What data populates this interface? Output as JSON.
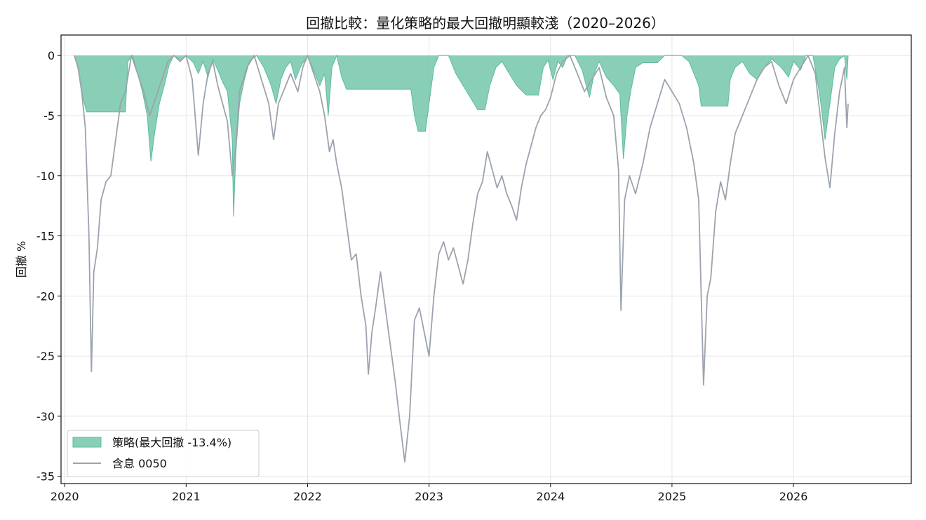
{
  "chart_data": {
    "type": "area",
    "title": "回撤比較：量化策略的最大回撤明顯較淺（2020–2026）",
    "xlabel": "",
    "ylabel": "回撤 %",
    "xlim": [
      2019.97,
      2026.97
    ],
    "ylim": [
      -35.6,
      1.7
    ],
    "x_ticks": [
      2020,
      2021,
      2022,
      2023,
      2024,
      2025,
      2026
    ],
    "x_tick_labels": [
      "2020",
      "2021",
      "2022",
      "2023",
      "2024",
      "2025",
      "2026"
    ],
    "y_ticks": [
      0,
      -5,
      -10,
      -15,
      -20,
      -25,
      -30,
      -35
    ],
    "y_tick_labels": [
      "0",
      "-5",
      "-10",
      "-15",
      "-20",
      "-25",
      "-30",
      "-35"
    ],
    "grid": true,
    "legend_position": "lower-left",
    "series": [
      {
        "name": "策略(最大回撤 -13.4%)",
        "kind": "area",
        "color": "#5bbd9b",
        "points": [
          [
            2020.08,
            0
          ],
          [
            2020.12,
            -1.5
          ],
          [
            2020.15,
            -3.5
          ],
          [
            2020.18,
            -4.7
          ],
          [
            2020.3,
            -4.7
          ],
          [
            2020.4,
            -4.7
          ],
          [
            2020.5,
            -4.7
          ],
          [
            2020.52,
            -0.5
          ],
          [
            2020.56,
            0
          ],
          [
            2020.6,
            -1.5
          ],
          [
            2020.64,
            -3.0
          ],
          [
            2020.68,
            -5.0
          ],
          [
            2020.71,
            -8.8
          ],
          [
            2020.74,
            -6.5
          ],
          [
            2020.78,
            -4.0
          ],
          [
            2020.82,
            -2.5
          ],
          [
            2020.86,
            -0.8
          ],
          [
            2020.9,
            0
          ],
          [
            2020.96,
            -0.4
          ],
          [
            2021.0,
            0
          ],
          [
            2021.06,
            -0.6
          ],
          [
            2021.1,
            -1.5
          ],
          [
            2021.14,
            -0.5
          ],
          [
            2021.18,
            -1.8
          ],
          [
            2021.22,
            -0.3
          ],
          [
            2021.26,
            -1.2
          ],
          [
            2021.3,
            -2.2
          ],
          [
            2021.34,
            -3.0
          ],
          [
            2021.38,
            -7.0
          ],
          [
            2021.39,
            -13.4
          ],
          [
            2021.41,
            -8.0
          ],
          [
            2021.44,
            -4.0
          ],
          [
            2021.48,
            -2.0
          ],
          [
            2021.52,
            -0.5
          ],
          [
            2021.58,
            0
          ],
          [
            2021.64,
            -1.0
          ],
          [
            2021.7,
            -2.5
          ],
          [
            2021.74,
            -4.0
          ],
          [
            2021.78,
            -2.0
          ],
          [
            2021.82,
            -1.0
          ],
          [
            2021.86,
            -0.5
          ],
          [
            2021.9,
            -2.0
          ],
          [
            2021.94,
            -1.0
          ],
          [
            2022.0,
            0
          ],
          [
            2022.06,
            -1.5
          ],
          [
            2022.1,
            -2.5
          ],
          [
            2022.14,
            -1.5
          ],
          [
            2022.17,
            -5.0
          ],
          [
            2022.2,
            -1.0
          ],
          [
            2022.24,
            0
          ],
          [
            2022.28,
            -1.8
          ],
          [
            2022.32,
            -2.8
          ],
          [
            2022.5,
            -2.8
          ],
          [
            2022.7,
            -2.8
          ],
          [
            2022.85,
            -2.8
          ],
          [
            2022.88,
            -5.0
          ],
          [
            2022.91,
            -6.3
          ],
          [
            2022.97,
            -6.3
          ],
          [
            2023.0,
            -4.0
          ],
          [
            2023.04,
            -1.0
          ],
          [
            2023.08,
            0
          ],
          [
            2023.16,
            0
          ],
          [
            2023.22,
            -1.5
          ],
          [
            2023.28,
            -2.5
          ],
          [
            2023.34,
            -3.5
          ],
          [
            2023.4,
            -4.5
          ],
          [
            2023.46,
            -4.5
          ],
          [
            2023.5,
            -2.5
          ],
          [
            2023.55,
            -1.0
          ],
          [
            2023.6,
            -0.5
          ],
          [
            2023.66,
            -1.5
          ],
          [
            2023.72,
            -2.5
          ],
          [
            2023.8,
            -3.3
          ],
          [
            2023.9,
            -3.3
          ],
          [
            2023.94,
            -1.0
          ],
          [
            2023.98,
            -0.4
          ],
          [
            2024.02,
            -2.0
          ],
          [
            2024.06,
            -0.5
          ],
          [
            2024.1,
            -1.0
          ],
          [
            2024.14,
            0
          ],
          [
            2024.2,
            0
          ],
          [
            2024.26,
            -1.2
          ],
          [
            2024.32,
            -3.5
          ],
          [
            2024.36,
            -1.5
          ],
          [
            2024.4,
            -0.5
          ],
          [
            2024.46,
            -1.8
          ],
          [
            2024.52,
            -2.5
          ],
          [
            2024.57,
            -3.2
          ],
          [
            2024.6,
            -8.6
          ],
          [
            2024.63,
            -5.0
          ],
          [
            2024.66,
            -3.0
          ],
          [
            2024.7,
            -1.0
          ],
          [
            2024.76,
            -0.6
          ],
          [
            2024.84,
            -0.6
          ],
          [
            2024.88,
            -0.6
          ],
          [
            2024.94,
            0
          ],
          [
            2025.0,
            0
          ],
          [
            2025.08,
            0
          ],
          [
            2025.14,
            -0.5
          ],
          [
            2025.18,
            -1.5
          ],
          [
            2025.22,
            -2.5
          ],
          [
            2025.24,
            -4.2
          ],
          [
            2025.3,
            -4.2
          ],
          [
            2025.4,
            -4.2
          ],
          [
            2025.46,
            -4.2
          ],
          [
            2025.48,
            -2.0
          ],
          [
            2025.52,
            -1.0
          ],
          [
            2025.58,
            -0.5
          ],
          [
            2025.64,
            -1.5
          ],
          [
            2025.7,
            -2.0
          ],
          [
            2025.76,
            -1.0
          ],
          [
            2025.82,
            -0.3
          ],
          [
            2025.9,
            -1.0
          ],
          [
            2025.96,
            -1.8
          ],
          [
            2026.0,
            -0.5
          ],
          [
            2026.06,
            -1.2
          ],
          [
            2026.1,
            0
          ],
          [
            2026.16,
            0
          ],
          [
            2026.22,
            -3.5
          ],
          [
            2026.26,
            -7.0
          ],
          [
            2026.3,
            -4.0
          ],
          [
            2026.34,
            -1.0
          ],
          [
            2026.38,
            -0.3
          ],
          [
            2026.42,
            0
          ],
          [
            2026.44,
            -2.0
          ],
          [
            2026.45,
            0
          ]
        ]
      },
      {
        "name": "含息 0050",
        "kind": "line",
        "color": "#9ca3af",
        "points": [
          [
            2020.08,
            0
          ],
          [
            2020.11,
            -1.0
          ],
          [
            2020.14,
            -3.0
          ],
          [
            2020.17,
            -6.0
          ],
          [
            2020.2,
            -15.0
          ],
          [
            2020.22,
            -26.3
          ],
          [
            2020.24,
            -18.0
          ],
          [
            2020.27,
            -16.0
          ],
          [
            2020.3,
            -12.0
          ],
          [
            2020.34,
            -10.5
          ],
          [
            2020.38,
            -10.0
          ],
          [
            2020.42,
            -7.0
          ],
          [
            2020.46,
            -4.0
          ],
          [
            2020.5,
            -3.0
          ],
          [
            2020.55,
            0
          ],
          [
            2020.6,
            -1.5
          ],
          [
            2020.65,
            -3.0
          ],
          [
            2020.7,
            -5.0
          ],
          [
            2020.75,
            -3.5
          ],
          [
            2020.8,
            -2.0
          ],
          [
            2020.85,
            -0.5
          ],
          [
            2020.9,
            0
          ],
          [
            2020.95,
            -0.5
          ],
          [
            2021.0,
            0
          ],
          [
            2021.05,
            -2.0
          ],
          [
            2021.1,
            -8.3
          ],
          [
            2021.14,
            -4.0
          ],
          [
            2021.18,
            -1.5
          ],
          [
            2021.22,
            -0.5
          ],
          [
            2021.26,
            -2.5
          ],
          [
            2021.3,
            -4.0
          ],
          [
            2021.34,
            -5.5
          ],
          [
            2021.38,
            -10.0
          ],
          [
            2021.41,
            -7.5
          ],
          [
            2021.44,
            -3.0
          ],
          [
            2021.5,
            -1.0
          ],
          [
            2021.56,
            0
          ],
          [
            2021.62,
            -2.0
          ],
          [
            2021.68,
            -4.0
          ],
          [
            2021.72,
            -7.0
          ],
          [
            2021.76,
            -4.0
          ],
          [
            2021.82,
            -2.5
          ],
          [
            2021.86,
            -1.5
          ],
          [
            2021.92,
            -3.0
          ],
          [
            2021.96,
            -1.0
          ],
          [
            2022.0,
            0
          ],
          [
            2022.05,
            -1.5
          ],
          [
            2022.1,
            -3.0
          ],
          [
            2022.14,
            -5.0
          ],
          [
            2022.18,
            -8.0
          ],
          [
            2022.21,
            -7.0
          ],
          [
            2022.24,
            -9.0
          ],
          [
            2022.28,
            -11.0
          ],
          [
            2022.32,
            -14.0
          ],
          [
            2022.36,
            -17.0
          ],
          [
            2022.4,
            -16.5
          ],
          [
            2022.44,
            -20.0
          ],
          [
            2022.48,
            -22.5
          ],
          [
            2022.5,
            -26.5
          ],
          [
            2022.53,
            -23.0
          ],
          [
            2022.56,
            -21.0
          ],
          [
            2022.6,
            -18.0
          ],
          [
            2022.64,
            -21.0
          ],
          [
            2022.68,
            -24.0
          ],
          [
            2022.72,
            -27.0
          ],
          [
            2022.76,
            -30.5
          ],
          [
            2022.8,
            -33.8
          ],
          [
            2022.84,
            -30.0
          ],
          [
            2022.88,
            -22.0
          ],
          [
            2022.92,
            -21.0
          ],
          [
            2022.96,
            -23.0
          ],
          [
            2023.0,
            -25.0
          ],
          [
            2023.04,
            -20.0
          ],
          [
            2023.08,
            -16.5
          ],
          [
            2023.12,
            -15.5
          ],
          [
            2023.16,
            -17.0
          ],
          [
            2023.2,
            -16.0
          ],
          [
            2023.24,
            -17.5
          ],
          [
            2023.28,
            -19.0
          ],
          [
            2023.32,
            -17.0
          ],
          [
            2023.36,
            -14.0
          ],
          [
            2023.4,
            -11.5
          ],
          [
            2023.44,
            -10.5
          ],
          [
            2023.48,
            -8.0
          ],
          [
            2023.52,
            -9.5
          ],
          [
            2023.56,
            -11.0
          ],
          [
            2023.6,
            -10.0
          ],
          [
            2023.64,
            -11.5
          ],
          [
            2023.68,
            -12.5
          ],
          [
            2023.72,
            -13.7
          ],
          [
            2023.76,
            -11.0
          ],
          [
            2023.8,
            -9.0
          ],
          [
            2023.84,
            -7.5
          ],
          [
            2023.88,
            -6.0
          ],
          [
            2023.92,
            -5.0
          ],
          [
            2023.96,
            -4.5
          ],
          [
            2024.0,
            -3.5
          ],
          [
            2024.05,
            -1.5
          ],
          [
            2024.1,
            -0.5
          ],
          [
            2024.16,
            0
          ],
          [
            2024.22,
            -1.5
          ],
          [
            2024.28,
            -3.0
          ],
          [
            2024.34,
            -2.0
          ],
          [
            2024.4,
            -1.0
          ],
          [
            2024.46,
            -3.5
          ],
          [
            2024.52,
            -5.0
          ],
          [
            2024.56,
            -9.5
          ],
          [
            2024.58,
            -21.2
          ],
          [
            2024.61,
            -12.0
          ],
          [
            2024.65,
            -10.0
          ],
          [
            2024.7,
            -11.5
          ],
          [
            2024.76,
            -9.0
          ],
          [
            2024.82,
            -6.0
          ],
          [
            2024.88,
            -4.0
          ],
          [
            2024.94,
            -2.0
          ],
          [
            2025.0,
            -3.0
          ],
          [
            2025.06,
            -4.0
          ],
          [
            2025.12,
            -6.0
          ],
          [
            2025.18,
            -9.0
          ],
          [
            2025.22,
            -12.0
          ],
          [
            2025.26,
            -27.4
          ],
          [
            2025.29,
            -20.0
          ],
          [
            2025.32,
            -18.5
          ],
          [
            2025.36,
            -13.0
          ],
          [
            2025.4,
            -10.5
          ],
          [
            2025.44,
            -12.0
          ],
          [
            2025.48,
            -9.0
          ],
          [
            2025.52,
            -6.5
          ],
          [
            2025.58,
            -5.0
          ],
          [
            2025.64,
            -3.5
          ],
          [
            2025.7,
            -2.0
          ],
          [
            2025.76,
            -1.0
          ],
          [
            2025.82,
            -0.5
          ],
          [
            2025.88,
            -2.5
          ],
          [
            2025.94,
            -4.0
          ],
          [
            2026.0,
            -2.0
          ],
          [
            2026.06,
            -1.0
          ],
          [
            2026.12,
            0
          ],
          [
            2026.18,
            -1.5
          ],
          [
            2026.22,
            -5.0
          ],
          [
            2026.26,
            -8.5
          ],
          [
            2026.3,
            -11.0
          ],
          [
            2026.34,
            -6.5
          ],
          [
            2026.38,
            -3.0
          ],
          [
            2026.42,
            -1.0
          ],
          [
            2026.44,
            -6.0
          ],
          [
            2026.45,
            -4.0
          ]
        ]
      }
    ]
  }
}
